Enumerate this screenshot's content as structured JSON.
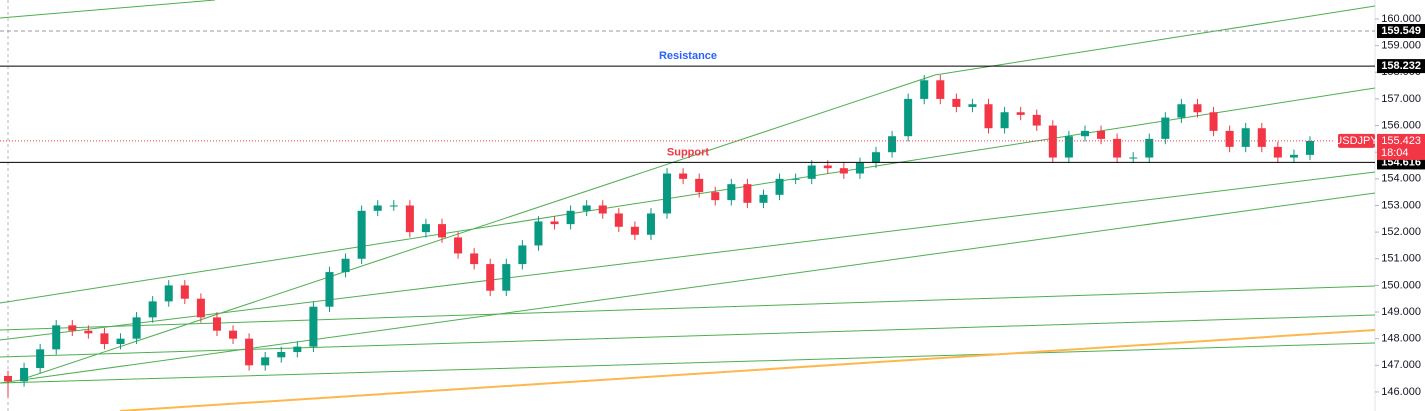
{
  "chart_data": {
    "type": "candlestick",
    "up_color": "#089981",
    "down_color": "#f23645",
    "open": [
      146.6,
      146.4,
      146.9,
      147.6,
      148.5,
      148.3,
      148.2,
      147.8,
      148.0,
      148.8,
      149.4,
      150.0,
      149.5,
      148.8,
      148.3,
      148.0,
      147.0,
      147.3,
      147.5,
      147.7,
      149.2,
      150.5,
      151.0,
      152.8,
      153.0,
      153.0,
      152.0,
      152.3,
      151.8,
      151.2,
      150.8,
      149.8,
      150.8,
      151.5,
      152.4,
      152.3,
      152.8,
      153.0,
      152.7,
      152.2,
      151.9,
      152.7,
      154.2,
      154.0,
      153.5,
      153.2,
      153.8,
      153.1,
      153.4,
      154.0,
      154.0,
      154.5,
      154.4,
      154.2,
      154.6,
      155.0,
      155.6,
      157.0,
      157.7,
      157.0,
      156.7,
      156.8,
      155.9,
      156.5,
      156.4,
      156.0,
      154.8,
      155.6,
      155.8,
      155.5,
      154.8,
      154.8,
      155.5,
      156.3,
      156.8,
      156.5,
      155.8,
      155.2,
      155.9,
      155.2,
      154.8,
      154.9
    ],
    "high": [
      146.8,
      147.1,
      147.8,
      148.7,
      148.7,
      148.5,
      148.4,
      148.2,
      149.0,
      149.6,
      150.2,
      150.2,
      149.7,
      149.0,
      148.5,
      148.2,
      147.5,
      147.7,
      147.9,
      149.4,
      150.7,
      151.2,
      153.0,
      153.2,
      153.2,
      153.2,
      152.5,
      152.5,
      152.0,
      151.4,
      151.0,
      151.0,
      151.7,
      152.6,
      152.6,
      153.0,
      153.2,
      153.2,
      152.9,
      152.4,
      152.9,
      154.4,
      154.4,
      154.2,
      153.7,
      154.0,
      154.0,
      153.6,
      154.2,
      154.2,
      154.7,
      154.7,
      154.6,
      154.8,
      155.2,
      155.8,
      157.2,
      157.9,
      157.9,
      157.2,
      157.0,
      157.0,
      156.7,
      156.7,
      156.6,
      156.2,
      155.8,
      156.0,
      156.0,
      155.7,
      155.0,
      155.7,
      156.5,
      157.0,
      157.0,
      156.7,
      156.0,
      156.1,
      156.1,
      155.4,
      155.1,
      155.6
    ],
    "low": [
      145.8,
      146.2,
      146.7,
      147.4,
      148.1,
      148.0,
      147.6,
      147.6,
      147.8,
      148.6,
      149.2,
      149.3,
      148.6,
      148.1,
      147.8,
      146.8,
      146.8,
      147.1,
      147.3,
      147.5,
      149.0,
      150.3,
      150.8,
      152.6,
      152.8,
      151.8,
      151.8,
      151.6,
      151.0,
      150.6,
      149.6,
      149.6,
      150.6,
      151.3,
      152.1,
      152.1,
      152.6,
      152.5,
      152.0,
      151.7,
      151.7,
      152.5,
      153.8,
      153.3,
      153.0,
      153.0,
      152.9,
      152.9,
      153.2,
      153.8,
      153.8,
      154.2,
      154.0,
      154.0,
      154.4,
      154.8,
      155.4,
      156.8,
      156.8,
      156.5,
      156.5,
      155.7,
      155.7,
      156.2,
      155.8,
      154.6,
      154.6,
      155.4,
      155.3,
      154.6,
      154.6,
      154.6,
      155.3,
      156.1,
      156.3,
      155.6,
      155.0,
      155.0,
      155.0,
      154.6,
      154.6,
      154.7
    ],
    "close": [
      146.4,
      146.9,
      147.6,
      148.5,
      148.3,
      148.2,
      147.8,
      148.0,
      148.8,
      149.4,
      150.0,
      149.5,
      148.8,
      148.3,
      148.0,
      147.0,
      147.3,
      147.5,
      147.7,
      149.2,
      150.5,
      151.0,
      152.8,
      153.0,
      153.0,
      152.0,
      152.3,
      151.8,
      151.2,
      150.8,
      149.8,
      150.8,
      151.5,
      152.4,
      152.3,
      152.8,
      153.0,
      152.7,
      152.2,
      151.9,
      152.7,
      154.2,
      154.0,
      153.5,
      153.2,
      153.8,
      153.1,
      153.4,
      154.0,
      154.0,
      154.5,
      154.4,
      154.2,
      154.6,
      155.0,
      155.6,
      157.0,
      157.7,
      157.0,
      156.7,
      156.8,
      155.9,
      156.5,
      156.4,
      156.0,
      154.8,
      155.6,
      155.8,
      155.5,
      154.8,
      154.8,
      155.5,
      156.3,
      156.8,
      156.5,
      155.8,
      155.2,
      155.9,
      155.2,
      154.8,
      154.9,
      155.42
    ],
    "ylim": [
      145.285,
      160.713
    ],
    "yticks": [
      {
        "value": 146,
        "label": "146.000"
      },
      {
        "value": 147,
        "label": "147.000"
      },
      {
        "value": 148,
        "label": "148.000"
      },
      {
        "value": 149,
        "label": "149.000"
      },
      {
        "value": 150,
        "label": "150.000"
      },
      {
        "value": 151,
        "label": "151.000"
      },
      {
        "value": 152,
        "label": "152.000"
      },
      {
        "value": 153,
        "label": "153.000"
      },
      {
        "value": 154,
        "label": "154.000"
      },
      {
        "value": 155,
        "label": "155.000"
      },
      {
        "value": 156,
        "label": "156.000"
      },
      {
        "value": 157,
        "label": "157.000"
      },
      {
        "value": 158,
        "label": "158.000"
      },
      {
        "value": 159,
        "label": "159.000"
      },
      {
        "value": 160,
        "label": "160.000"
      }
    ],
    "levels": [
      {
        "value": 159.549,
        "style": "dashed",
        "color": "#9598a1"
      },
      {
        "value": 158.232,
        "style": "solid",
        "color": "#000000",
        "text": "Resistance",
        "text_color": "#2962ff"
      },
      {
        "value": 154.616,
        "style": "solid",
        "color": "#000000",
        "text": "Support",
        "text_color": "#f23645"
      }
    ],
    "last_price": {
      "value": 155.423,
      "symbol": "USDJPY",
      "countdown": "18:04",
      "color": "#f23645"
    }
  }
}
